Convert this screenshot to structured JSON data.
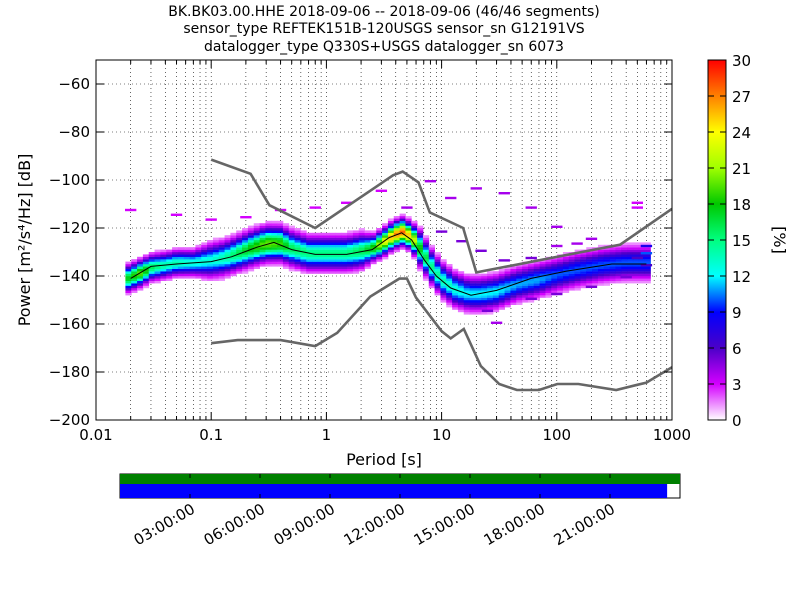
{
  "title_lines": [
    "BK.BK03.00.HHE   2018-09-06 -- 2018-09-06  (46/46 segments)",
    "sensor_type REFTEK151B-120USGS sensor_sn G12191VS",
    "datalogger_type Q330S+USGS datalogger_sn 6073"
  ],
  "chart_data": {
    "type": "heatmap",
    "xlabel": "Period [s]",
    "ylabel": "Power [m²/s⁴/Hz] [dB]",
    "xscale": "log",
    "xlim": [
      0.01,
      1000
    ],
    "ylim": [
      -200,
      -50
    ],
    "x_ticks": [
      0.01,
      0.1,
      1,
      10,
      100,
      1000
    ],
    "x_tick_labels": [
      "0.01",
      "0.1",
      "1",
      "10",
      "100",
      "1000"
    ],
    "y_ticks": [
      -200,
      -180,
      -160,
      -140,
      -120,
      -100,
      -80,
      -60
    ],
    "y_tick_labels": [
      "−200",
      "−180",
      "−160",
      "−140",
      "−120",
      "−100",
      "−80",
      "−60"
    ],
    "grid": true,
    "colorbar": {
      "label": "[%]",
      "min": 0,
      "max": 30,
      "ticks": [
        0,
        3,
        6,
        9,
        12,
        15,
        18,
        21,
        24,
        27,
        30
      ],
      "tick_labels": [
        "0",
        "3",
        "6",
        "9",
        "12",
        "15",
        "18",
        "21",
        "24",
        "27",
        "30"
      ]
    },
    "noise_models": [
      {
        "role": "new-high-noise-model",
        "points": [
          [
            0.1,
            -91.5
          ],
          [
            0.22,
            -97.4
          ],
          [
            0.32,
            -110.5
          ],
          [
            0.8,
            -120
          ],
          [
            3.8,
            -98
          ],
          [
            4.6,
            -96.5
          ],
          [
            6.3,
            -101
          ],
          [
            7.9,
            -113.5
          ],
          [
            15.4,
            -120
          ],
          [
            20,
            -138.5
          ],
          [
            354.8,
            -126.9
          ],
          [
            1000,
            -112
          ]
        ]
      },
      {
        "role": "new-low-noise-model",
        "points": [
          [
            0.1,
            -168
          ],
          [
            0.17,
            -166.7
          ],
          [
            0.4,
            -166.7
          ],
          [
            0.8,
            -169.2
          ],
          [
            1.24,
            -163.7
          ],
          [
            2.4,
            -148.6
          ],
          [
            4.3,
            -141.1
          ],
          [
            5,
            -141.1
          ],
          [
            6,
            -149
          ],
          [
            10,
            -163
          ],
          [
            12,
            -166
          ],
          [
            15.6,
            -162.1
          ],
          [
            21.9,
            -177.5
          ],
          [
            31.6,
            -185
          ],
          [
            45,
            -187.5
          ],
          [
            70,
            -187.5
          ],
          [
            101,
            -185
          ],
          [
            154,
            -185
          ],
          [
            328,
            -187.5
          ],
          [
            600,
            -184.4
          ],
          [
            1000,
            -178
          ]
        ]
      }
    ],
    "mode_curve": [
      [
        0.02,
        -141
      ],
      [
        0.03,
        -136
      ],
      [
        0.05,
        -135
      ],
      [
        0.1,
        -134
      ],
      [
        0.15,
        -132
      ],
      [
        0.25,
        -128
      ],
      [
        0.35,
        -126
      ],
      [
        0.5,
        -129
      ],
      [
        0.8,
        -131
      ],
      [
        1.5,
        -131
      ],
      [
        2.5,
        -129
      ],
      [
        3.5,
        -124
      ],
      [
        4.5,
        -122
      ],
      [
        5.5,
        -125
      ],
      [
        7,
        -133
      ],
      [
        9,
        -140
      ],
      [
        12,
        -145
      ],
      [
        18,
        -148
      ],
      [
        30,
        -146
      ],
      [
        60,
        -141
      ],
      [
        120,
        -138
      ],
      [
        300,
        -135
      ],
      [
        600,
        -135
      ]
    ],
    "distribution": {
      "core": [
        [
          0.02,
          -141,
          3,
          18
        ],
        [
          0.025,
          -139,
          3,
          20
        ],
        [
          0.03,
          -137,
          3,
          16
        ],
        [
          0.04,
          -136,
          3,
          14
        ],
        [
          0.05,
          -135,
          3,
          14
        ],
        [
          0.07,
          -135,
          3,
          13
        ],
        [
          0.1,
          -134,
          4,
          13
        ],
        [
          0.13,
          -133,
          4,
          14
        ],
        [
          0.17,
          -131,
          4,
          16
        ],
        [
          0.22,
          -129,
          4,
          18
        ],
        [
          0.3,
          -127,
          4,
          20
        ],
        [
          0.4,
          -127,
          4,
          19
        ],
        [
          0.5,
          -129,
          4,
          16
        ],
        [
          0.7,
          -131,
          4,
          15
        ],
        [
          1,
          -131,
          4,
          15
        ],
        [
          1.5,
          -131,
          4,
          15
        ],
        [
          2,
          -130,
          4,
          16
        ],
        [
          2.5,
          -129,
          3,
          18
        ],
        [
          3,
          -127,
          3,
          22
        ],
        [
          3.7,
          -124,
          3,
          26
        ],
        [
          4.5,
          -122,
          3,
          28
        ],
        [
          5.5,
          -124,
          3,
          24
        ],
        [
          6.5,
          -129,
          4,
          18
        ],
        [
          8,
          -136,
          4,
          15
        ],
        [
          10,
          -142,
          4,
          14
        ],
        [
          13,
          -146,
          4,
          13
        ],
        [
          17,
          -148,
          4,
          12
        ],
        [
          22,
          -148,
          4,
          12
        ],
        [
          30,
          -147,
          4,
          12
        ],
        [
          45,
          -144,
          4,
          11
        ],
        [
          70,
          -142,
          4,
          11
        ],
        [
          100,
          -140,
          4,
          10
        ],
        [
          150,
          -138,
          4,
          10
        ],
        [
          250,
          -136,
          4,
          10
        ],
        [
          400,
          -135,
          4,
          10
        ],
        [
          600,
          -135,
          4,
          10
        ]
      ],
      "excursions": [
        [
          10,
          -122,
          5
        ],
        [
          15,
          -126,
          5
        ],
        [
          22,
          -130,
          5
        ],
        [
          35,
          -134,
          5
        ],
        [
          60,
          -133,
          5
        ],
        [
          100,
          -128,
          4
        ],
        [
          200,
          -125,
          4
        ],
        [
          12,
          -108,
          4
        ],
        [
          20,
          -104,
          4
        ],
        [
          35,
          -106,
          4
        ],
        [
          60,
          -112,
          4
        ],
        [
          100,
          -120,
          4
        ],
        [
          150,
          -127,
          4
        ],
        [
          8,
          -101,
          4
        ],
        [
          5,
          -112,
          4
        ],
        [
          30,
          -160,
          4
        ],
        [
          25,
          -155,
          5
        ],
        [
          60,
          -150,
          5
        ],
        [
          100,
          -148,
          5
        ],
        [
          200,
          -145,
          5
        ],
        [
          400,
          -141,
          5
        ],
        [
          0.02,
          -113,
          3
        ],
        [
          0.05,
          -115,
          3
        ],
        [
          0.1,
          -117,
          3
        ],
        [
          0.2,
          -116,
          3
        ],
        [
          0.4,
          -113,
          3
        ],
        [
          0.8,
          -112,
          3
        ],
        [
          1.5,
          -110,
          3
        ],
        [
          3,
          -105,
          3
        ],
        [
          500,
          -110,
          3
        ],
        [
          500,
          -112,
          3
        ],
        [
          500,
          -133,
          6
        ],
        [
          600,
          -136,
          6
        ],
        [
          600,
          -128,
          8
        ],
        [
          600,
          -131,
          10
        ]
      ]
    },
    "segments": 46
  },
  "timeline": {
    "ticks": [
      "03:00:00",
      "06:00:00",
      "09:00:00",
      "12:00:00",
      "15:00:00",
      "18:00:00",
      "21:00:00"
    ],
    "green_fraction": 1.0,
    "blue_fraction": 0.977,
    "colors": {
      "green": "#008000",
      "blue": "#0000ff"
    }
  }
}
